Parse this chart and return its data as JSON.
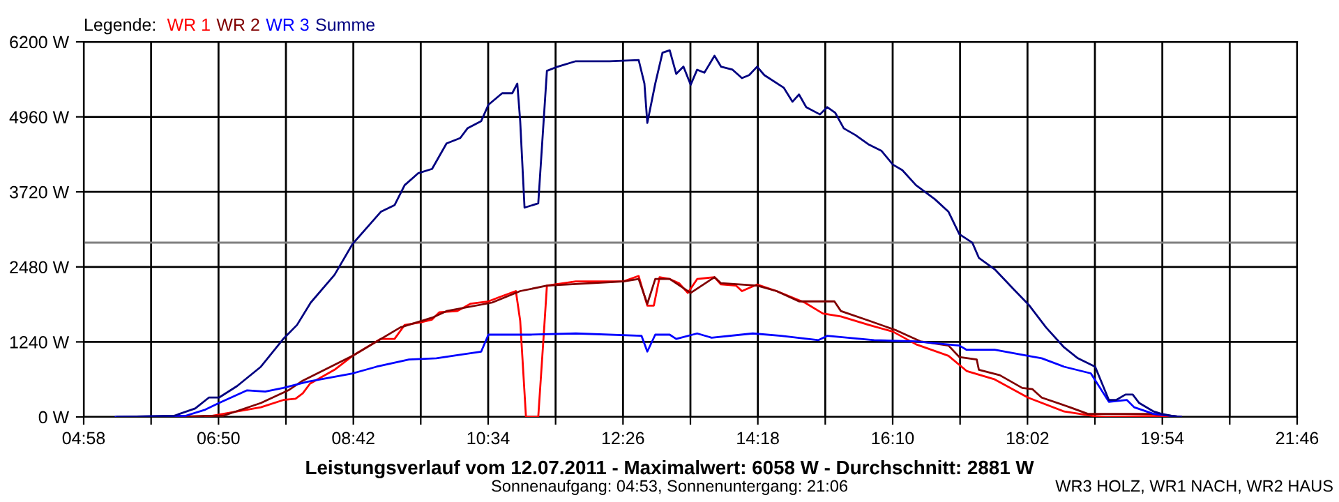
{
  "chart_data": {
    "type": "line",
    "title": "Leistungsverlauf vom 12.07.2011 - Maximalwert: 6058 W - Durchschnitt: 2881 W",
    "subtitle": "Sonnenaufgang: 04:53, Sonnenuntergang: 21:06",
    "legend_title": "Legende:",
    "annotations": [
      "WR3 HOLZ, WR1 NACH, WR2 HAUS"
    ],
    "series": [
      {
        "name": "WR 1",
        "color": "#ff0000",
        "x": [
          6.65,
          7.09,
          7.42,
          7.73,
          7.9,
          8.0,
          8.1,
          8.44,
          8.69,
          9.08,
          9.27,
          9.41,
          9.66,
          9.79,
          9.89,
          10.14,
          10.32,
          10.57,
          10.72,
          10.95,
          11.01,
          11.09,
          11.26,
          11.34,
          11.38,
          11.78,
          12.44,
          12.65,
          12.77,
          12.86,
          12.94,
          13.08,
          13.21,
          13.33,
          13.46,
          13.7,
          13.79,
          14.0,
          14.08,
          14.29,
          14.56,
          14.95,
          15.2,
          15.45,
          15.84,
          16.17,
          16.49,
          16.94,
          17.19,
          17.58,
          18.04,
          18.54,
          18.93,
          19.12,
          19.89,
          20.16
        ],
        "values": [
          0,
          90,
          160,
          280,
          300,
          390,
          550,
          780,
          1010,
          1290,
          1290,
          1520,
          1570,
          1610,
          1730,
          1750,
          1870,
          1910,
          1980,
          2080,
          1590,
          0,
          0,
          1430,
          2170,
          2240,
          2240,
          2330,
          1840,
          1840,
          2310,
          2280,
          2210,
          2050,
          2280,
          2310,
          2190,
          2170,
          2080,
          2190,
          2080,
          1890,
          1710,
          1660,
          1520,
          1410,
          1200,
          1010,
          760,
          620,
          320,
          90,
          20,
          0,
          20,
          0
        ]
      },
      {
        "name": "WR 2",
        "color": "#800000",
        "x": [
          6.22,
          6.65,
          6.9,
          7.42,
          7.8,
          8.0,
          8.69,
          9.35,
          9.79,
          9.99,
          10.62,
          11.01,
          11.38,
          12.44,
          12.65,
          12.77,
          12.88,
          13.08,
          13.37,
          13.7,
          13.79,
          14.29,
          14.56,
          14.87,
          15.36,
          15.45,
          15.84,
          16.22,
          16.55,
          16.94,
          17.09,
          17.33,
          17.36,
          17.65,
          17.96,
          18.1,
          18.23,
          18.62,
          18.87,
          19.78,
          20.16
        ],
        "values": [
          0,
          20,
          20,
          230,
          440,
          600,
          1010,
          1480,
          1640,
          1750,
          1890,
          2080,
          2170,
          2240,
          2280,
          1870,
          2280,
          2280,
          2050,
          2310,
          2210,
          2170,
          2080,
          1910,
          1910,
          1750,
          1590,
          1430,
          1250,
          1180,
          990,
          950,
          780,
          690,
          480,
          460,
          320,
          160,
          50,
          50,
          0
        ]
      },
      {
        "name": "WR 3",
        "color": "#0000ff",
        "x": [
          5.41,
          6.38,
          6.65,
          6.84,
          7.23,
          7.48,
          7.73,
          8.06,
          8.69,
          9.02,
          9.47,
          9.85,
          10.47,
          10.57,
          11.15,
          11.78,
          12.69,
          12.77,
          12.88,
          13.08,
          13.17,
          13.46,
          13.66,
          14.23,
          14.62,
          15.14,
          15.26,
          15.91,
          16.49,
          17.09,
          17.19,
          17.58,
          18.04,
          18.23,
          18.54,
          18.91,
          19.16,
          19.41,
          19.51,
          19.78,
          20.16
        ],
        "values": [
          0,
          20,
          120,
          230,
          440,
          420,
          480,
          580,
          720,
          830,
          950,
          970,
          1080,
          1360,
          1360,
          1380,
          1340,
          1080,
          1360,
          1360,
          1290,
          1380,
          1310,
          1380,
          1340,
          1270,
          1340,
          1270,
          1250,
          1180,
          1110,
          1110,
          1010,
          970,
          830,
          720,
          250,
          280,
          160,
          50,
          0
        ]
      },
      {
        "name": "Summe",
        "color": "#000080",
        "x": [
          5.43,
          6.22,
          6.51,
          6.7,
          6.84,
          7.09,
          7.42,
          7.73,
          7.92,
          8.11,
          8.44,
          8.69,
          9.08,
          9.27,
          9.41,
          9.6,
          9.79,
          9.99,
          10.18,
          10.28,
          10.47,
          10.57,
          10.76,
          10.9,
          10.97,
          11.01,
          11.07,
          11.26,
          11.38,
          11.53,
          11.78,
          12.25,
          12.65,
          12.73,
          12.77,
          12.88,
          12.98,
          13.08,
          13.17,
          13.27,
          13.37,
          13.46,
          13.56,
          13.7,
          13.79,
          13.95,
          14.08,
          14.18,
          14.29,
          14.39,
          14.66,
          14.78,
          14.87,
          14.97,
          15.16,
          15.26,
          15.37,
          15.49,
          15.65,
          15.84,
          16.01,
          16.17,
          16.3,
          16.49,
          16.75,
          16.94,
          17.09,
          17.27,
          17.36,
          17.58,
          17.85,
          18.06,
          18.29,
          18.54,
          18.73,
          18.97,
          19.16,
          19.26,
          19.39,
          19.49,
          19.58,
          19.78,
          19.89,
          20.03,
          20.16
        ],
        "values": [
          0,
          20,
          140,
          320,
          320,
          510,
          830,
          1290,
          1520,
          1890,
          2350,
          2860,
          3390,
          3500,
          3830,
          4030,
          4100,
          4520,
          4610,
          4770,
          4890,
          5160,
          5350,
          5350,
          5510,
          4890,
          3460,
          3530,
          5720,
          5790,
          5880,
          5880,
          5900,
          5510,
          4860,
          5510,
          6020,
          6060,
          5670,
          5790,
          5490,
          5740,
          5690,
          5970,
          5790,
          5740,
          5600,
          5650,
          5790,
          5650,
          5440,
          5210,
          5330,
          5120,
          5000,
          5120,
          5030,
          4770,
          4660,
          4500,
          4400,
          4170,
          4080,
          3830,
          3600,
          3390,
          3020,
          2880,
          2630,
          2440,
          2100,
          1840,
          1480,
          1150,
          970,
          830,
          280,
          280,
          370,
          370,
          230,
          90,
          50,
          20,
          0
        ]
      }
    ],
    "xlim": [
      4.9667,
      21.7667
    ],
    "xticks": [
      {
        "value": 4.9667,
        "label": "04:58"
      },
      {
        "value": 5.9,
        "label": null
      },
      {
        "value": 6.8333,
        "label": "06:50"
      },
      {
        "value": 7.7667,
        "label": null
      },
      {
        "value": 8.7,
        "label": "08:42"
      },
      {
        "value": 9.6333,
        "label": null
      },
      {
        "value": 10.5667,
        "label": "10:34"
      },
      {
        "value": 11.5,
        "label": null
      },
      {
        "value": 12.4333,
        "label": "12:26"
      },
      {
        "value": 13.3667,
        "label": null
      },
      {
        "value": 14.3,
        "label": "14:18"
      },
      {
        "value": 15.2333,
        "label": null
      },
      {
        "value": 16.1667,
        "label": "16:10"
      },
      {
        "value": 17.1,
        "label": null
      },
      {
        "value": 18.0333,
        "label": "18:02"
      },
      {
        "value": 18.9667,
        "label": null
      },
      {
        "value": 19.9,
        "label": "19:54"
      },
      {
        "value": 20.8333,
        "label": null
      },
      {
        "value": 21.7667,
        "label": "21:46"
      }
    ],
    "ylim": [
      0,
      6200
    ],
    "yticks": [
      {
        "value": 0,
        "label": "0 W"
      },
      {
        "value": 1240,
        "label": "1240 W"
      },
      {
        "value": 2480,
        "label": "2480 W"
      },
      {
        "value": 3720,
        "label": "3720 W"
      },
      {
        "value": 4960,
        "label": "4960 W"
      },
      {
        "value": 6200,
        "label": "6200 W"
      }
    ],
    "ref_lines": [
      {
        "axis": "y",
        "value": 2881,
        "color": "#808080"
      }
    ],
    "grid": true,
    "legend": "top left"
  }
}
